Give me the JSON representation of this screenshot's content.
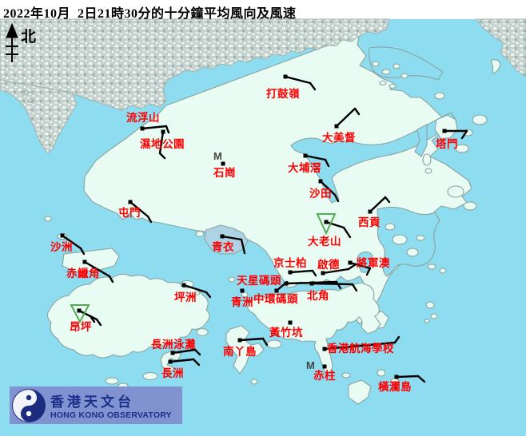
{
  "title": "2022年10月  2日21時30分的十分鐘平均風向及風速",
  "north_label": "北",
  "logo": {
    "chinese": "香港天文台",
    "english": "HONG KONG OBSERVATORY"
  },
  "colors": {
    "water": "#8edcf0",
    "land": "#e9fcf4",
    "urban_gray": "#c6d2ce",
    "tsing_yi_urban": "#aed3e4",
    "coast": "#8aa3a0",
    "station_label": "#ff0000",
    "barb": "#000000",
    "calm_triangle": "#55aa55",
    "m_marker": "#444444",
    "logo_bar": "#8092cf",
    "logo_circle": "#1c2d80",
    "logo_text": "#1c2d8a"
  },
  "stations": [
    {
      "label": "打鼓嶺",
      "lp": [
        333,
        122
      ],
      "dot": [
        357,
        96
      ],
      "barb": [
        [
          357,
          96,
          388,
          104
        ],
        [
          388,
          104,
          394,
          112
        ]
      ]
    },
    {
      "label": "流浮山",
      "lp": [
        158,
        152
      ],
      "dot": [
        178,
        161
      ],
      "barb": [
        [
          178,
          161,
          208,
          158
        ],
        [
          208,
          158,
          211,
          166
        ]
      ]
    },
    {
      "label": "濕地公園",
      "lp": [
        175,
        185
      ],
      "dot": [
        204,
        165
      ],
      "barb": [
        [
          204,
          165,
          200,
          192
        ],
        [
          200,
          192,
          206,
          198
        ]
      ]
    },
    {
      "label": "石崗",
      "lp": [
        267,
        221
      ],
      "dot": [
        279,
        205
      ],
      "m": [
        275,
        200
      ]
    },
    {
      "label": "大美督",
      "lp": [
        403,
        177
      ],
      "dot": [
        421,
        158
      ],
      "barb": [
        [
          421,
          158,
          444,
          136
        ],
        [
          444,
          136,
          449,
          143
        ]
      ]
    },
    {
      "label": "塔門",
      "lp": [
        545,
        185
      ],
      "dot": [
        556,
        164
      ],
      "barb": [
        [
          556,
          164,
          584,
          164
        ],
        [
          584,
          164,
          578,
          173
        ]
      ]
    },
    {
      "label": "大埔滘",
      "lp": [
        360,
        215
      ],
      "dot": [
        382,
        195
      ],
      "barb": [
        [
          382,
          195,
          407,
          200
        ],
        [
          407,
          200,
          411,
          208
        ]
      ]
    },
    {
      "label": "沙田",
      "lp": [
        387,
        247
      ],
      "dot": [
        401,
        227
      ],
      "barb": [
        [
          401,
          227,
          419,
          244
        ],
        [
          419,
          244,
          423,
          252
        ]
      ]
    },
    {
      "label": "屯門",
      "lp": [
        148,
        271
      ],
      "dot": [
        163,
        253
      ],
      "barb": [
        [
          163,
          253,
          185,
          271
        ],
        [
          185,
          271,
          189,
          278
        ]
      ]
    },
    {
      "label": "沙洲",
      "lp": [
        63,
        314
      ],
      "dot": [
        78,
        295
      ],
      "barb": [
        [
          78,
          295,
          101,
          311
        ],
        [
          101,
          311,
          105,
          318
        ]
      ]
    },
    {
      "label": "赤鱲角",
      "lp": [
        83,
        347
      ],
      "dot": [
        106,
        328
      ],
      "barb": [
        [
          106,
          328,
          137,
          346
        ],
        [
          137,
          346,
          141,
          353
        ]
      ]
    },
    {
      "label": "青衣",
      "lp": [
        265,
        314
      ],
      "dot": [
        278,
        296
      ],
      "barb": [
        [
          278,
          296,
          302,
          300
        ],
        [
          302,
          300,
          306,
          317
        ]
      ]
    },
    {
      "label": "坪洲",
      "lp": [
        218,
        377
      ],
      "dot": [
        230,
        357
      ],
      "barb": [
        [
          230,
          357,
          258,
          366
        ],
        [
          258,
          366,
          263,
          372
        ]
      ]
    },
    {
      "label": "大老山",
      "lp": [
        385,
        307
      ],
      "dot": [
        408,
        278
      ],
      "tri": [
        397,
        268,
        419,
        268,
        408,
        292
      ],
      "barb": [
        [
          408,
          278,
          430,
          285
        ],
        [
          430,
          285,
          438,
          297
        ]
      ]
    },
    {
      "label": "京士柏",
      "lp": [
        342,
        334
      ],
      "dot": [
        363,
        341
      ],
      "barb": [
        [
          363,
          341,
          391,
          339
        ],
        [
          391,
          339,
          395,
          345
        ]
      ]
    },
    {
      "label": "啟德",
      "lp": [
        397,
        336
      ],
      "dot": [
        404,
        342
      ],
      "barb": [
        [
          404,
          342,
          436,
          337
        ],
        [
          436,
          337,
          445,
          331
        ]
      ]
    },
    {
      "label": "將軍澳",
      "lp": [
        446,
        334
      ],
      "dot": [
        438,
        329
      ],
      "barb": [
        [
          438,
          329,
          463,
          336
        ],
        [
          463,
          336,
          459,
          344
        ]
      ]
    },
    {
      "label": "西貢",
      "lp": [
        448,
        283
      ],
      "dot": [
        463,
        265
      ],
      "barb": [
        [
          463,
          265,
          482,
          247
        ],
        [
          482,
          247,
          487,
          253
        ]
      ]
    },
    {
      "label": "天星碼頭",
      "lp": [
        296,
        356
      ],
      "dot": [
        358,
        355
      ],
      "barb": [
        [
          358,
          355,
          421,
          353
        ],
        [
          421,
          353,
          426,
          361
        ]
      ]
    },
    {
      "label": "中環碼頭",
      "lp": [
        317,
        379
      ],
      "dot": [
        346,
        364
      ],
      "barb": [
        [
          346,
          364,
          359,
          353
        ]
      ]
    },
    {
      "label": "北角",
      "lp": [
        384,
        375
      ],
      "dot": [
        390,
        355
      ],
      "barb": [
        [
          390,
          355,
          441,
          356
        ],
        [
          441,
          356,
          446,
          364
        ]
      ]
    },
    {
      "label": "青洲",
      "lp": [
        289,
        383
      ],
      "dot": [
        303,
        364
      ]
    },
    {
      "label": "昂坪",
      "lp": [
        87,
        414
      ],
      "dot": [
        99,
        389
      ],
      "tri": [
        89,
        382,
        111,
        382,
        100,
        403
      ],
      "barb": [
        [
          99,
          389,
          121,
          400
        ],
        [
          121,
          400,
          126,
          407
        ],
        [
          113,
          396,
          118,
          403
        ]
      ]
    },
    {
      "label": "長洲泳灘",
      "lp": [
        189,
        436
      ],
      "dot": [
        216,
        442
      ],
      "barb": [
        [
          216,
          442,
          244,
          438
        ],
        [
          244,
          438,
          250,
          444
        ]
      ]
    },
    {
      "label": "長洲",
      "lp": [
        202,
        472
      ],
      "dot": [
        213,
        453
      ],
      "barb": [
        [
          213,
          453,
          242,
          450
        ],
        [
          242,
          450,
          249,
          457
        ]
      ]
    },
    {
      "label": "南丫島",
      "lp": [
        279,
        445
      ],
      "dot": [
        300,
        426
      ],
      "barb": [
        [
          300,
          426,
          329,
          424
        ],
        [
          329,
          424,
          334,
          432
        ]
      ]
    },
    {
      "label": "黃竹坑",
      "lp": [
        337,
        421
      ],
      "dot": [
        363,
        404
      ]
    },
    {
      "label": "香港航海學校",
      "lp": [
        409,
        441
      ],
      "dot": [
        406,
        437
      ],
      "barb": [
        [
          406,
          437,
          494,
          429
        ],
        [
          494,
          429,
          499,
          422
        ]
      ]
    },
    {
      "label": "赤柱",
      "lp": [
        392,
        475
      ],
      "dot": [
        406,
        459
      ],
      "m": [
        391,
        462
      ]
    },
    {
      "label": "橫瀾島",
      "lp": [
        473,
        489
      ],
      "dot": [
        496,
        472
      ],
      "barb": [
        [
          496,
          472,
          523,
          471
        ],
        [
          523,
          471,
          531,
          478
        ]
      ]
    }
  ]
}
